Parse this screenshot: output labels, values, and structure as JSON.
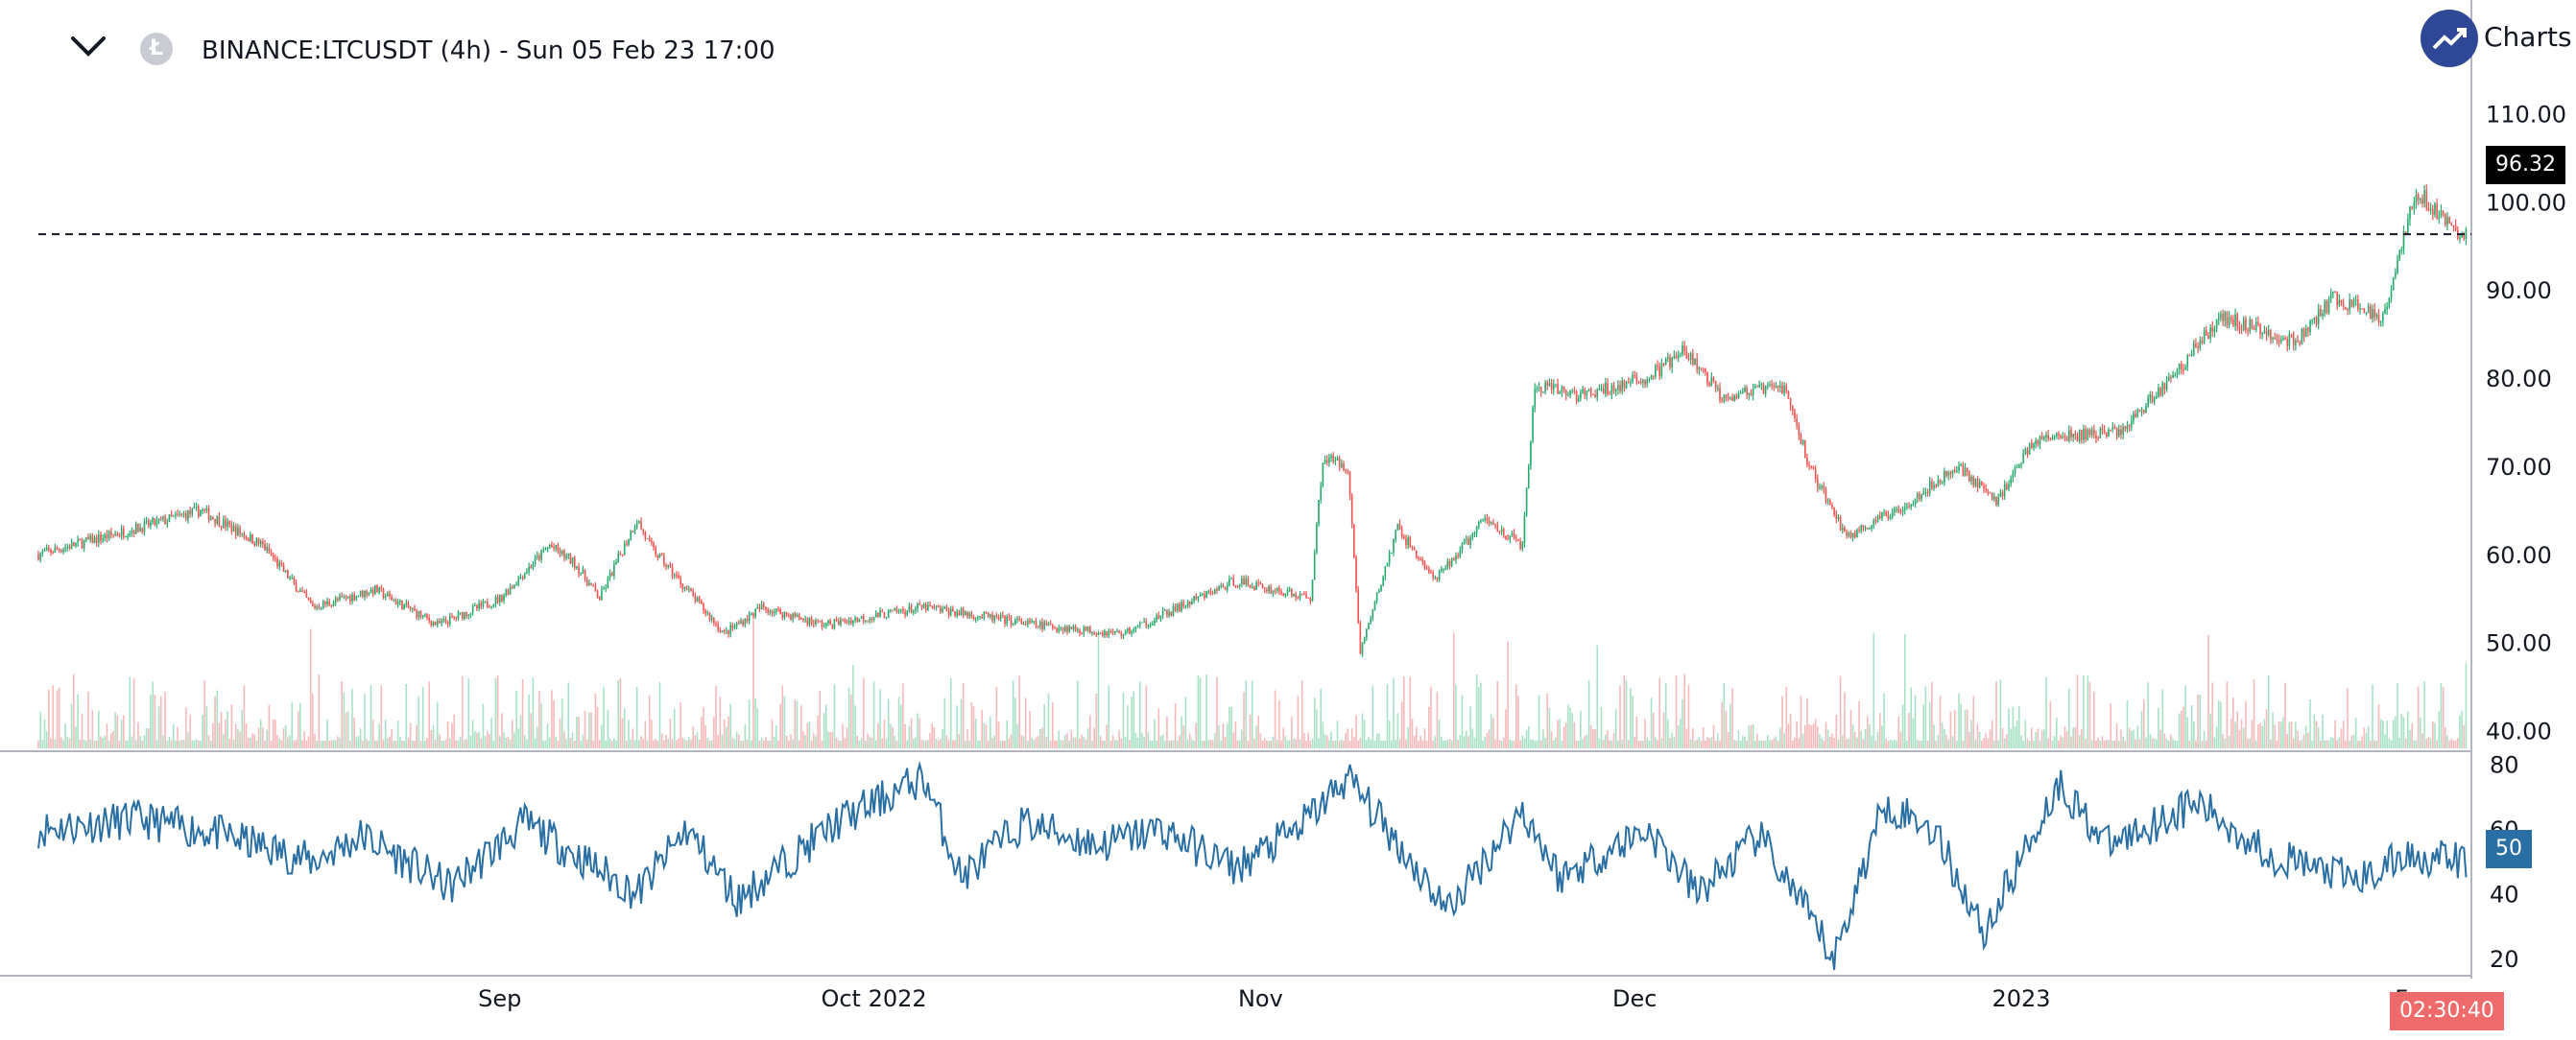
{
  "header": {
    "symbol_title": "BINANCE:LTCUSDT (4h) - Sun 05 Feb 23 17:00",
    "logo_text": "Charts",
    "collapse_icon": "chevron-down-icon",
    "coin_icon": "litecoin-icon",
    "logo_icon": "trending-up-icon"
  },
  "colors": {
    "up": "#26a96c",
    "down": "#ef5350",
    "volume_up": "#a8e2c6",
    "volume_down": "#f7b9b9",
    "rsi_line": "#2a6fa3",
    "axis": "#b2b5be"
  },
  "price_axis": {
    "labels": [
      "110.00",
      "100.00",
      "90.00",
      "80.00",
      "70.00",
      "60.00",
      "50.00",
      "40.00"
    ],
    "current_price": "96.32"
  },
  "rsi_axis": {
    "labels": [
      "80",
      "60",
      "40",
      "20"
    ],
    "current_value": "50"
  },
  "time_axis": {
    "labels": [
      "Sep",
      "Oct 2022",
      "Nov",
      "Dec",
      "2023",
      "Fe"
    ],
    "countdown": "02:30:40"
  },
  "chart_data": {
    "type": "candlestick",
    "interval": "4h",
    "ylim": [
      38,
      112
    ],
    "rsi_ylim": [
      15,
      82
    ],
    "current_price": 96.32,
    "current_rsi": 50,
    "close_series": {
      "x": [
        "2022-07-26",
        "2022-08-03",
        "2022-08-08",
        "2022-08-13",
        "2022-08-17",
        "2022-08-22",
        "2022-08-27",
        "2022-09-01",
        "2022-09-05",
        "2022-09-07",
        "2022-09-09",
        "2022-09-12",
        "2022-09-13",
        "2022-09-19",
        "2022-09-22",
        "2022-09-27",
        "2022-10-05",
        "2022-10-14",
        "2022-10-21",
        "2022-10-27",
        "2022-10-30",
        "2022-11-05",
        "2022-11-06",
        "2022-11-08",
        "2022-11-09",
        "2022-11-12",
        "2022-11-15",
        "2022-11-19",
        "2022-11-22",
        "2022-11-23",
        "2022-11-27",
        "2022-12-02",
        "2022-12-05",
        "2022-12-08",
        "2022-12-13",
        "2022-12-15",
        "2022-12-18",
        "2022-12-22",
        "2022-12-27",
        "2022-12-30",
        "2023-01-02",
        "2023-01-09",
        "2023-01-13",
        "2023-01-17",
        "2023-01-23",
        "2023-01-26",
        "2023-01-30",
        "2023-02-01",
        "2023-02-02",
        "2023-02-05"
      ],
      "close": [
        60,
        63,
        65,
        61,
        54,
        56,
        52,
        55,
        61,
        59,
        55,
        64,
        61,
        51,
        54,
        52,
        54,
        52,
        51,
        55,
        57,
        55,
        71,
        70,
        49,
        63,
        57,
        64,
        61,
        79,
        78,
        80,
        83,
        78,
        79,
        70,
        62,
        65,
        70,
        66,
        73,
        74,
        80,
        87,
        84,
        89,
        87,
        98,
        101,
        96.3
      ]
    },
    "rsi_series": {
      "x": [
        "2022-07-26",
        "2022-08-03",
        "2022-08-09",
        "2022-08-17",
        "2022-08-21",
        "2022-08-28",
        "2022-09-03",
        "2022-09-12",
        "2022-09-16",
        "2022-09-20",
        "2022-09-28",
        "2022-10-05",
        "2022-10-08",
        "2022-10-13",
        "2022-10-19",
        "2022-10-24",
        "2022-10-30",
        "2022-11-04",
        "2022-11-08",
        "2022-11-16",
        "2022-11-22",
        "2022-11-25",
        "2022-12-02",
        "2022-12-06",
        "2022-12-11",
        "2022-12-17",
        "2022-12-21",
        "2022-12-25",
        "2022-12-29",
        "2023-01-04",
        "2023-01-08",
        "2023-01-15",
        "2023-01-21",
        "2023-01-28",
        "2023-02-01",
        "2023-02-05"
      ],
      "rsi": [
        60,
        63,
        59,
        50,
        58,
        42,
        62,
        40,
        60,
        38,
        62,
        76,
        45,
        62,
        55,
        60,
        48,
        60,
        76,
        35,
        66,
        45,
        60,
        40,
        58,
        20,
        68,
        60,
        28,
        74,
        55,
        68,
        52,
        44,
        52,
        50
      ]
    }
  }
}
